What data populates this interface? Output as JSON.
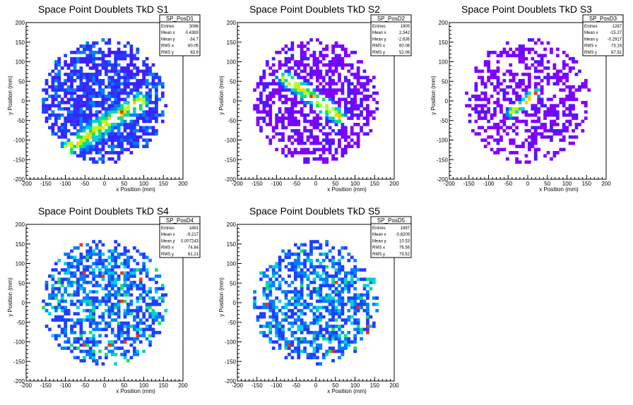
{
  "chart_data": [
    {
      "type": "heatmap",
      "title": "Space Point Doublets TkD S1",
      "xlabel": "x Position (mm)",
      "ylabel": "y Position (mm)",
      "xlim": [
        -200,
        200
      ],
      "ylim": [
        -200,
        200
      ],
      "x_ticks": [
        "-200",
        "-150",
        "-100",
        "-50",
        "0",
        "50",
        "100",
        "150",
        "200"
      ],
      "y_ticks": [
        "-200",
        "-150",
        "-100",
        "-50",
        "0",
        "50",
        "100",
        "150",
        "200"
      ],
      "stats": {
        "name": "SP_PosD1",
        "rows": [
          {
            "label": "Entries",
            "value": "3086"
          },
          {
            "label": "Mean x",
            "value": "0.4383"
          },
          {
            "label": "Mean y",
            "value": "-34.7"
          },
          {
            "label": "RMS x",
            "value": "80.05"
          },
          {
            "label": "RMS y",
            "value": "63.9"
          }
        ]
      },
      "band": {
        "from": [
          -90,
          -120
        ],
        "to": [
          90,
          0
        ],
        "width": 28
      }
    },
    {
      "type": "heatmap",
      "title": "Space Point Doublets TkD S2",
      "xlabel": "x Position (mm)",
      "ylabel": "y Position (mm)",
      "xlim": [
        -200,
        200
      ],
      "ylim": [
        -200,
        200
      ],
      "x_ticks": [
        "-200",
        "-150",
        "-100",
        "-50",
        "0",
        "50",
        "100",
        "150",
        "200"
      ],
      "y_ticks": [
        "-200",
        "-150",
        "-100",
        "-50",
        "0",
        "50",
        "100",
        "150",
        "200"
      ],
      "stats": {
        "name": "SP_PosD2",
        "rows": [
          {
            "label": "Entries",
            "value": "1905"
          },
          {
            "label": "Mean x",
            "value": "2.342"
          },
          {
            "label": "Mean y",
            "value": "-2.636"
          },
          {
            "label": "RMS x",
            "value": "60.06"
          },
          {
            "label": "RMS y",
            "value": "52.06"
          }
        ]
      },
      "band": {
        "from": [
          -80,
          60
        ],
        "to": [
          60,
          -40
        ],
        "width": 22
      }
    },
    {
      "type": "heatmap",
      "title": "Space Point Doublets TkD S3",
      "xlabel": "x Position (mm)",
      "ylabel": "y Position (mm)",
      "xlim": [
        -200,
        200
      ],
      "ylim": [
        -200,
        200
      ],
      "x_ticks": [
        "-200",
        "-150",
        "-100",
        "-50",
        "0",
        "50",
        "100",
        "150",
        "200"
      ],
      "y_ticks": [
        "-200",
        "-150",
        "-100",
        "-50",
        "0",
        "50",
        "100",
        "150",
        "200"
      ],
      "stats": {
        "name": "SP_PosD3",
        "rows": [
          {
            "label": "Entries",
            "value": "1287"
          },
          {
            "label": "Mean x",
            "value": "-15.27"
          },
          {
            "label": "Mean y",
            "value": "-0.2917"
          },
          {
            "label": "RMS x",
            "value": "73.19"
          },
          {
            "label": "RMS y",
            "value": "67.91"
          }
        ]
      },
      "band": {
        "from": [
          -40,
          -30
        ],
        "to": [
          20,
          20
        ],
        "width": 16
      }
    },
    {
      "type": "heatmap",
      "title": "Space Point Doublets TkD S4",
      "xlabel": "x Position (mm)",
      "ylabel": "y Position (mm)",
      "xlim": [
        -200,
        200
      ],
      "ylim": [
        -200,
        200
      ],
      "x_ticks": [
        "-200",
        "-150",
        "-100",
        "-50",
        "0",
        "50",
        "100",
        "150",
        "200"
      ],
      "y_ticks": [
        "-200",
        "-150",
        "-100",
        "-50",
        "0",
        "50",
        "100",
        "150",
        "200"
      ],
      "stats": {
        "name": "SP_PosD4",
        "rows": [
          {
            "label": "Entries",
            "value": "1881"
          },
          {
            "label": "Mean x",
            "value": "-9.217"
          },
          {
            "label": "Mean y",
            "value": "0.007243"
          },
          {
            "label": "RMS x",
            "value": "74.84"
          },
          {
            "label": "RMS y",
            "value": "81.21"
          }
        ]
      },
      "band": null
    },
    {
      "type": "heatmap",
      "title": "Space Point Doublets TkD S5",
      "xlabel": "x Position (mm)",
      "ylabel": "y Position (mm)",
      "xlim": [
        -200,
        200
      ],
      "ylim": [
        -200,
        200
      ],
      "x_ticks": [
        "-200",
        "-150",
        "-100",
        "-50",
        "0",
        "50",
        "100",
        "150",
        "200"
      ],
      "y_ticks": [
        "-200",
        "-150",
        "-100",
        "-50",
        "0",
        "50",
        "100",
        "150",
        "200"
      ],
      "stats": {
        "name": "SP_PosD5",
        "rows": [
          {
            "label": "Entries",
            "value": "1897"
          },
          {
            "label": "Mean x",
            "value": "-0.8209"
          },
          {
            "label": "Mean y",
            "value": "10.53"
          },
          {
            "label": "RMS x",
            "value": "76.56"
          },
          {
            "label": "RMS y",
            "value": "79.52"
          }
        ]
      },
      "band": null
    }
  ],
  "colors": {
    "palette": [
      "#7f00ff",
      "#3f1fff",
      "#1f3fff",
      "#0080ff",
      "#00d0e0",
      "#10e070",
      "#b0ff20",
      "#ffd000",
      "#ff3000"
    ]
  }
}
